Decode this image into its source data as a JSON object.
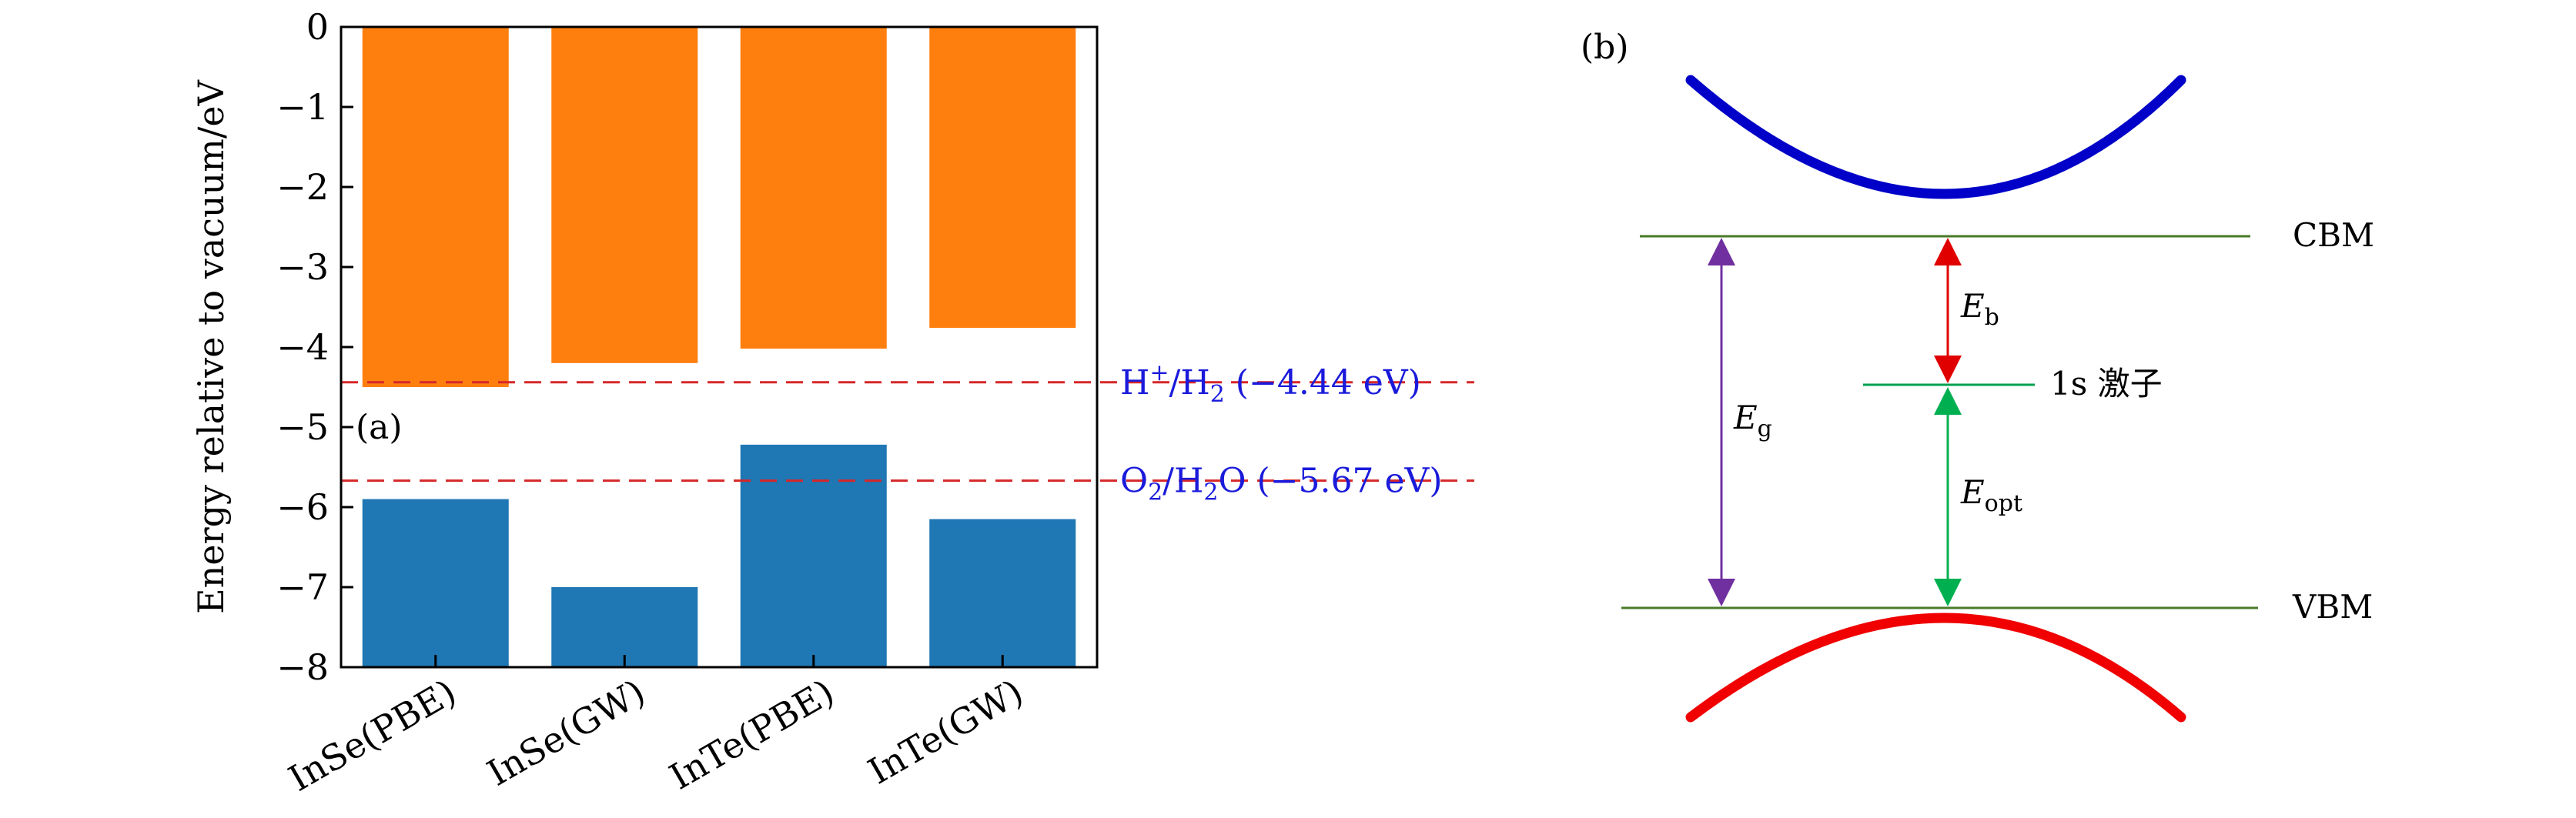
{
  "chart_data": [
    {
      "type": "bar",
      "panel_label": "(a)",
      "ylabel": "Energy relative to vacuum/eV",
      "ylim": [
        -8,
        0
      ],
      "yticks": [
        0,
        -1,
        -2,
        -3,
        -4,
        -5,
        -6,
        -7,
        -8
      ],
      "ytick_labels": [
        "0",
        "−1",
        "−2",
        "−3",
        "−4",
        "−5",
        "−6",
        "−7",
        "−8"
      ],
      "categories": [
        "InSe(PBE)",
        "InSe(GW)",
        "InTe(PBE)",
        "InTe(GW)"
      ],
      "series": [
        {
          "role": "CBM",
          "color": "#ff7f0e",
          "values": [
            -4.5,
            -4.2,
            -4.02,
            -3.76
          ]
        },
        {
          "role": "VBM",
          "color": "#1f77b4",
          "values": [
            -5.9,
            -7.0,
            -5.22,
            -6.15
          ]
        }
      ],
      "reference_lines": [
        {
          "value": -4.44,
          "color": "#d62728",
          "label_main": "H",
          "label_sup": "+",
          "label_mid": "/H",
          "label_sub": "2",
          "label_tail": " (−4.44 eV)"
        },
        {
          "value": -5.67,
          "color": "#d62728",
          "label_main": "O",
          "label_sub": "2",
          "label_mid": "/H",
          "label_sub2": "2",
          "label_tail": "O (−5.67 eV)"
        }
      ],
      "grid": false
    },
    {
      "type": "diagram",
      "panel_label": "(b)",
      "labels": {
        "cbm": "CBM",
        "vbm": "VBM",
        "exciton": "1s 激子",
        "eg_main": "E",
        "eg_sub": "g",
        "eb_main": "E",
        "eb_sub": "b",
        "eopt_main": "E",
        "eopt_sub": "opt"
      },
      "colors": {
        "conduction_band": "#0000c8",
        "valence_band": "#f00000",
        "level_line": "#4a7a2a",
        "eg_arrow": "#7030a0",
        "eb_arrow": "#e00000",
        "eopt_arrow": "#00b050",
        "exciton_line": "#00a050"
      }
    }
  ]
}
